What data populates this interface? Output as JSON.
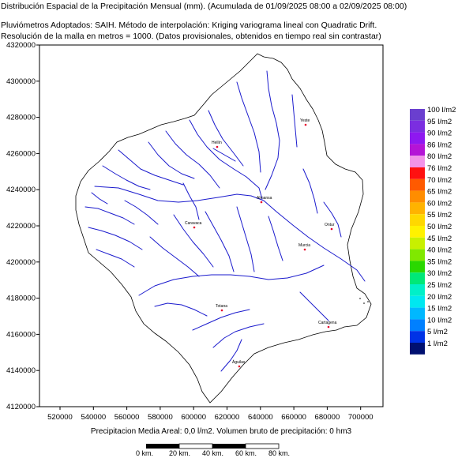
{
  "header": {
    "line1": "Distribución Espacial de la Precipitación Mensual (mm). (Acumulada de 01/09/2025 08:00 a 02/09/2025 08:00)",
    "line2": "Pluviómetros Adoptados: SAIH.  Método de interpolación: Kriging variograma lineal con Quadratic Drift.",
    "line3": "Resolución de la malla en metros = 1000. (Datos provisionales, obtenidos en tiempo real sin contrastar)"
  },
  "map": {
    "x_ticks": [
      "520000",
      "540000",
      "560000",
      "580000",
      "600000",
      "620000",
      "640000",
      "660000",
      "680000",
      "700000"
    ],
    "y_ticks": [
      "4320000",
      "4300000",
      "4280000",
      "4260000",
      "4240000",
      "4220000",
      "4200000",
      "4180000",
      "4160000",
      "4140000",
      "4120000"
    ],
    "cities": [
      "Yeste",
      "Hellín",
      "Almansa",
      "Caravaca",
      "Ontur",
      "Murcia",
      "Totana",
      "Cartagena",
      "Águilas"
    ],
    "basin_fill": "#ffffff",
    "river_color": "#1a1acd",
    "marker_color": "#e8002a"
  },
  "legend": {
    "items": [
      {
        "label": "100 l/m2",
        "color": "#6a3fcf"
      },
      {
        "label": "95 l/m2",
        "color": "#7b2ee0"
      },
      {
        "label": "90 l/m2",
        "color": "#8e18f0"
      },
      {
        "label": "86 l/m2",
        "color": "#b414d6"
      },
      {
        "label": "80 l/m2",
        "color": "#f293e8"
      },
      {
        "label": "76 l/m2",
        "color": "#ff1111"
      },
      {
        "label": "70 l/m2",
        "color": "#ff5a00"
      },
      {
        "label": "65 l/m2",
        "color": "#ff8d00"
      },
      {
        "label": "60 l/m2",
        "color": "#ffb300"
      },
      {
        "label": "55 l/m2",
        "color": "#ffd800"
      },
      {
        "label": "50 l/m2",
        "color": "#fff200"
      },
      {
        "label": "45 l/m2",
        "color": "#c8f000"
      },
      {
        "label": "40 l/m2",
        "color": "#80e800"
      },
      {
        "label": "35 l/m2",
        "color": "#2ad800"
      },
      {
        "label": "30 l/m2",
        "color": "#00e878"
      },
      {
        "label": "25 l/m2",
        "color": "#00f0c8"
      },
      {
        "label": "20 l/m2",
        "color": "#00e8f0"
      },
      {
        "label": "15 l/m2",
        "color": "#00b8ff"
      },
      {
        "label": "10 l/m2",
        "color": "#0080ff"
      },
      {
        "label": "5 l/m2",
        "color": "#0033e6"
      },
      {
        "label": "1 l/m2",
        "color": "#001070"
      }
    ]
  },
  "footer": {
    "text": "Precipitacion Media Areal: 0,0 l/m2. Volumen bruto de precipitación: 0 hm3"
  },
  "scale": {
    "labels": [
      "0 km.",
      "20 km.",
      "40 km.",
      "60 km.",
      "80 km."
    ]
  }
}
